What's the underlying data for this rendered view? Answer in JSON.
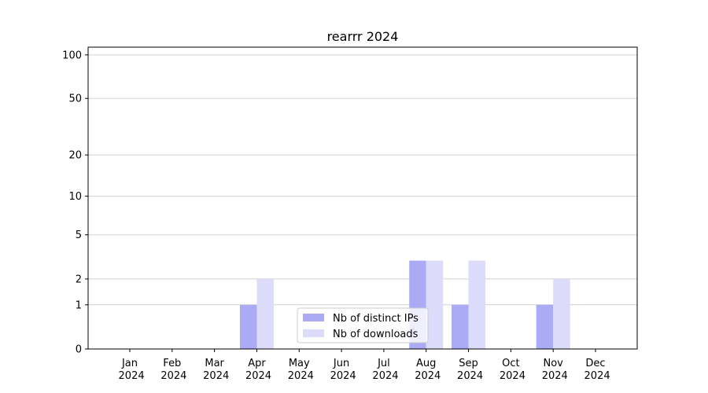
{
  "chart_data": {
    "type": "bar",
    "title": "rearrr 2024",
    "categories": [
      "Jan 2024",
      "Feb 2024",
      "Mar 2024",
      "Apr 2024",
      "May 2024",
      "Jun 2024",
      "Jul 2024",
      "Aug 2024",
      "Sep 2024",
      "Oct 2024",
      "Nov 2024",
      "Dec 2024"
    ],
    "series": [
      {
        "name": "Nb of distinct IPs",
        "color": "#aaaaf5",
        "values": [
          0,
          0,
          0,
          1,
          0,
          0,
          0,
          3,
          1,
          0,
          1,
          0
        ]
      },
      {
        "name": "Nb of downloads",
        "color": "#dcdcfa",
        "values": [
          0,
          0,
          0,
          2,
          0,
          0,
          0,
          3,
          3,
          0,
          2,
          0
        ]
      }
    ],
    "yscale": "log1p",
    "ylim": [
      0,
      113
    ],
    "yticks": [
      0,
      1,
      2,
      5,
      10,
      20,
      50,
      100
    ],
    "grid": true,
    "legend": "lower center"
  }
}
